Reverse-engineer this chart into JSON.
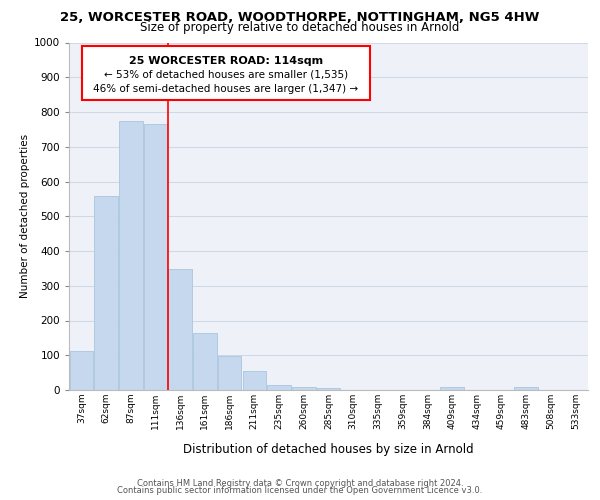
{
  "title_line1": "25, WORCESTER ROAD, WOODTHORPE, NOTTINGHAM, NG5 4HW",
  "title_line2": "Size of property relative to detached houses in Arnold",
  "xlabel": "Distribution of detached houses by size in Arnold",
  "ylabel": "Number of detached properties",
  "bar_labels": [
    "37sqm",
    "62sqm",
    "87sqm",
    "111sqm",
    "136sqm",
    "161sqm",
    "186sqm",
    "211sqm",
    "235sqm",
    "260sqm",
    "285sqm",
    "310sqm",
    "335sqm",
    "359sqm",
    "384sqm",
    "409sqm",
    "434sqm",
    "459sqm",
    "483sqm",
    "508sqm",
    "533sqm"
  ],
  "bar_values": [
    113,
    558,
    775,
    765,
    347,
    165,
    98,
    55,
    13,
    8,
    6,
    0,
    0,
    0,
    0,
    10,
    0,
    0,
    9,
    0,
    0
  ],
  "bar_color": "#c5d8ed",
  "bar_edge_color": "#aac4de",
  "ylim": [
    0,
    1000
  ],
  "yticks": [
    0,
    100,
    200,
    300,
    400,
    500,
    600,
    700,
    800,
    900,
    1000
  ],
  "annotation_title": "25 WORCESTER ROAD: 114sqm",
  "annotation_line2": "← 53% of detached houses are smaller (1,535)",
  "annotation_line3": "46% of semi-detached houses are larger (1,347) →",
  "footer_line1": "Contains HM Land Registry data © Crown copyright and database right 2024.",
  "footer_line2": "Contains public sector information licensed under the Open Government Licence v3.0.",
  "grid_color": "#d0d8e8",
  "background_color": "#eef2f8"
}
